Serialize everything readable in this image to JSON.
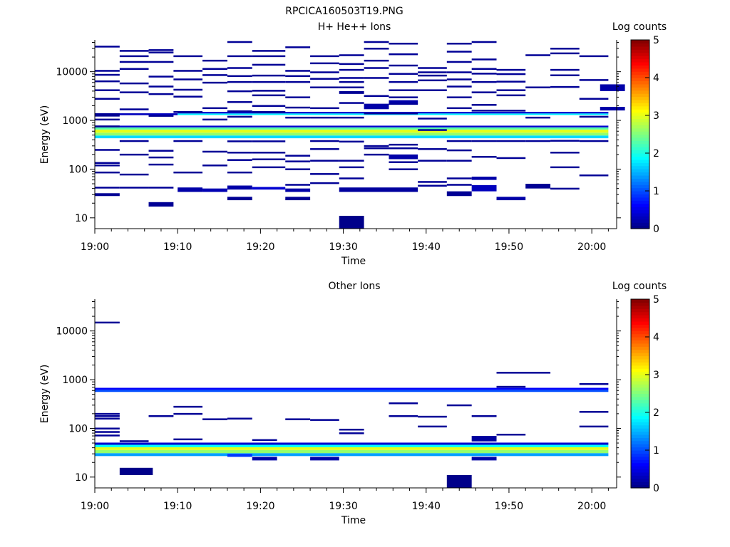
{
  "title": "RPCICA160503T19.PNG",
  "colorbar": {
    "label": "Log counts",
    "ticks": [
      "0",
      "1",
      "2",
      "3",
      "4",
      "5"
    ],
    "range": [
      0,
      5
    ],
    "scheme": "jet"
  },
  "chart_data": [
    {
      "type": "heatmap",
      "title": "H+ He++ Ions",
      "xlabel": "Time",
      "ylabel": "Energy (eV)",
      "x_ticks": [
        "19:00",
        "19:10",
        "19:20",
        "19:30",
        "19:40",
        "19:50",
        "20:00"
      ],
      "xlim_minutes": [
        0,
        63
      ],
      "y_ticks": [
        "10",
        "100",
        "1000",
        "10000"
      ],
      "ylim": [
        6,
        45000
      ],
      "y_scale": "log",
      "bands": [
        {
          "t0": 0,
          "t1": 62,
          "e0": 430,
          "e1": 490,
          "v": 1.7
        },
        {
          "t0": 0,
          "t1": 62,
          "e0": 490,
          "e1": 560,
          "v": 2.6
        },
        {
          "t0": 0,
          "t1": 62,
          "e0": 560,
          "e1": 650,
          "v": 3.0
        },
        {
          "t0": 0,
          "t1": 62,
          "e0": 650,
          "e1": 720,
          "v": 2.3
        },
        {
          "t0": 0,
          "t1": 62,
          "e0": 720,
          "e1": 780,
          "v": 0.4
        },
        {
          "t0": 0,
          "t1": 10,
          "e0": 1280,
          "e1": 1400,
          "v": 0.3
        },
        {
          "t0": 10,
          "t1": 62,
          "e0": 1290,
          "e1": 1390,
          "v": 1.8
        },
        {
          "t0": 10,
          "t1": 62,
          "e0": 1390,
          "e1": 1500,
          "v": 0.4
        },
        {
          "t0": 29.5,
          "t1": 32.5,
          "e0": 6,
          "e1": 11,
          "v": 0.05
        },
        {
          "t0": 0,
          "t1": 3,
          "e0": 1200,
          "e1": 1400,
          "v": 0.1
        },
        {
          "t0": 6.5,
          "t1": 9.5,
          "e0": 17,
          "e1": 21,
          "v": 0.1
        },
        {
          "t0": 0,
          "t1": 3,
          "e0": 28,
          "e1": 32,
          "v": 0.1
        },
        {
          "t0": 10,
          "t1": 13,
          "e0": 34,
          "e1": 42,
          "v": 0.2
        },
        {
          "t0": 13,
          "t1": 16,
          "e0": 34,
          "e1": 40,
          "v": 0.25
        },
        {
          "t0": 16,
          "t1": 19,
          "e0": 38,
          "e1": 46,
          "v": 0.2
        },
        {
          "t0": 19,
          "t1": 23,
          "e0": 38,
          "e1": 43,
          "v": 0.4
        },
        {
          "t0": 16,
          "t1": 19,
          "e0": 23,
          "e1": 27,
          "v": 0.1
        },
        {
          "t0": 23,
          "t1": 26,
          "e0": 23,
          "e1": 27,
          "v": 0.1
        },
        {
          "t0": 23,
          "t1": 26,
          "e0": 34,
          "e1": 40,
          "v": 0.2
        },
        {
          "t0": 29.5,
          "t1": 39,
          "e0": 34,
          "e1": 42,
          "v": 0.15
        },
        {
          "t0": 42.5,
          "t1": 45.5,
          "e0": 28,
          "e1": 35,
          "v": 0.1
        },
        {
          "t0": 45.5,
          "t1": 48.5,
          "e0": 35,
          "e1": 47,
          "v": 0.3
        },
        {
          "t0": 45.5,
          "t1": 48.5,
          "e0": 60,
          "e1": 70,
          "v": 0.2
        },
        {
          "t0": 48.5,
          "t1": 52,
          "e0": 23,
          "e1": 27,
          "v": 0.2
        },
        {
          "t0": 52,
          "t1": 55,
          "e0": 40,
          "e1": 50,
          "v": 0.1
        },
        {
          "t0": 61,
          "t1": 64,
          "e0": 4000,
          "e1": 5500,
          "v": 0.2
        },
        {
          "t0": 61,
          "t1": 64,
          "e0": 1600,
          "e1": 1900,
          "v": 0.2
        },
        {
          "t0": 32.5,
          "t1": 35.5,
          "e0": 1700,
          "e1": 2200,
          "v": 0.2
        },
        {
          "t0": 35.5,
          "t1": 39,
          "e0": 2200,
          "e1": 2600,
          "v": 0.2
        },
        {
          "t0": 35.5,
          "t1": 39,
          "e0": 160,
          "e1": 200,
          "v": 0.2
        },
        {
          "t0": 29.5,
          "t1": 32.5,
          "e0": 3500,
          "e1": 4000,
          "v": 0.1
        }
      ],
      "lines": [
        [
          0,
          3,
          [
            33000,
            10500,
            8700,
            6400,
            4200,
            2800,
            1050,
            760,
            250,
            135,
            120,
            86,
            42
          ]
        ],
        [
          3,
          6.5,
          [
            27000,
            21000,
            16000,
            11500,
            5800,
            3800,
            1700,
            380,
            200,
            78,
            42
          ]
        ],
        [
          6.5,
          9.5,
          [
            28000,
            25000,
            16000,
            8000,
            5000,
            3500,
            1250,
            240,
            175,
            125,
            42
          ]
        ],
        [
          9.5,
          13,
          [
            21000,
            10500,
            7000,
            4300,
            3100,
            1500,
            380,
            86
          ]
        ],
        [
          13,
          16,
          [
            17000,
            11500,
            8600,
            6000,
            1800,
            1050,
            230,
            120
          ]
        ],
        [
          16,
          19,
          [
            41000,
            21000,
            12000,
            8200,
            6200,
            4000,
            2400,
            1550,
            1200,
            375,
            220,
            155,
            86
          ]
        ],
        [
          19,
          23,
          [
            27000,
            21000,
            14000,
            8400,
            6200,
            4100,
            3300,
            2000,
            1500,
            375,
            220,
            160,
            110
          ]
        ],
        [
          23,
          26,
          [
            32000,
            10500,
            8200,
            6200,
            3000,
            1850,
            1150,
            190,
            145,
            100,
            48
          ]
        ],
        [
          26,
          29.5,
          [
            21000,
            15000,
            9800,
            7200,
            4800,
            1800,
            1150,
            380,
            260,
            150,
            80,
            52
          ]
        ],
        [
          29.5,
          32.5,
          [
            22000,
            14500,
            11000,
            7500,
            6200,
            4800,
            2300,
            1150,
            370,
            150,
            110,
            65
          ]
        ],
        [
          32.5,
          35.5,
          [
            41000,
            30000,
            17000,
            12000,
            7500,
            3200,
            1400,
            300,
            270,
            200
          ]
        ],
        [
          35.5,
          39,
          [
            38000,
            23000,
            13500,
            9100,
            6200,
            4200,
            3000,
            2200,
            1400,
            320,
            270,
            140,
            100
          ]
        ],
        [
          39,
          42.5,
          [
            12000,
            9800,
            8400,
            6700,
            4200,
            1100,
            640,
            260,
            150,
            55,
            46
          ]
        ],
        [
          42.5,
          45.5,
          [
            38000,
            26000,
            16000,
            9800,
            7000,
            5000,
            3000,
            1800,
            380,
            245,
            150,
            65,
            48
          ]
        ],
        [
          45.5,
          48.5,
          [
            41000,
            18000,
            11500,
            9200,
            6200,
            3800,
            2100,
            1600,
            380,
            180
          ]
        ],
        [
          48.5,
          52,
          [
            11000,
            9000,
            6300,
            4200,
            3300,
            1600,
            380,
            170
          ]
        ],
        [
          52,
          55,
          [
            22000,
            4800,
            1150,
            380
          ]
        ],
        [
          55,
          58.5,
          [
            30000,
            24000,
            11000,
            8500,
            4900,
            385,
            220,
            110,
            40
          ]
        ],
        [
          58.5,
          62,
          [
            21000,
            6800,
            2800,
            1200,
            380,
            75
          ]
        ]
      ]
    },
    {
      "type": "heatmap",
      "title": "Other Ions",
      "xlabel": "Time",
      "ylabel": "Energy (eV)",
      "x_ticks": [
        "19:00",
        "19:10",
        "19:20",
        "19:30",
        "19:40",
        "19:50",
        "20:00"
      ],
      "xlim_minutes": [
        0,
        63
      ],
      "y_ticks": [
        "10",
        "100",
        "1000",
        "10000"
      ],
      "ylim": [
        6,
        45000
      ],
      "y_scale": "log",
      "bands": [
        {
          "t0": 0,
          "t1": 62,
          "e0": 27,
          "e1": 31,
          "v": 1.4
        },
        {
          "t0": 0,
          "t1": 62,
          "e0": 31,
          "e1": 36,
          "v": 2.6
        },
        {
          "t0": 0,
          "t1": 62,
          "e0": 36,
          "e1": 41,
          "v": 3.0
        },
        {
          "t0": 0,
          "t1": 62,
          "e0": 41,
          "e1": 46,
          "v": 1.9
        },
        {
          "t0": 0,
          "t1": 62,
          "e0": 46,
          "e1": 51,
          "v": 0.4
        },
        {
          "t0": 0,
          "t1": 62,
          "e0": 560,
          "e1": 620,
          "v": 1.0
        },
        {
          "t0": 0,
          "t1": 62,
          "e0": 620,
          "e1": 680,
          "v": 0.6
        },
        {
          "t0": 3,
          "t1": 7,
          "e0": 11,
          "e1": 15.5,
          "v": 0.05
        },
        {
          "t0": 42.5,
          "t1": 45.5,
          "e0": 6,
          "e1": 11,
          "v": 0.05
        },
        {
          "t0": 45.5,
          "t1": 48.5,
          "e0": 54,
          "e1": 70,
          "v": 0.15
        },
        {
          "t0": 19,
          "t1": 22,
          "e0": 22,
          "e1": 26,
          "v": 0.2
        },
        {
          "t0": 26,
          "t1": 29.5,
          "e0": 22,
          "e1": 26,
          "v": 0.2
        },
        {
          "t0": 45.5,
          "t1": 48.5,
          "e0": 22,
          "e1": 26,
          "v": 0.2
        },
        {
          "t0": 16,
          "t1": 19,
          "e0": 26,
          "e1": 30,
          "v": 0.9
        }
      ],
      "lines": [
        [
          0,
          3,
          [
            15000,
            200,
            180,
            160,
            100,
            85,
            72
          ]
        ],
        [
          3,
          6.5,
          [
            55
          ]
        ],
        [
          6.5,
          9.5,
          [
            180
          ]
        ],
        [
          9.5,
          13,
          [
            280,
            200,
            60
          ]
        ],
        [
          13,
          16,
          [
            155
          ]
        ],
        [
          16,
          19,
          [
            160
          ]
        ],
        [
          19,
          22,
          [
            58
          ]
        ],
        [
          23,
          26,
          [
            155
          ]
        ],
        [
          26,
          29.5,
          [
            150
          ]
        ],
        [
          29.5,
          32.5,
          [
            95,
            80
          ]
        ],
        [
          35.5,
          39,
          [
            330,
            180
          ]
        ],
        [
          39,
          42.5,
          [
            175,
            110
          ]
        ],
        [
          42.5,
          45.5,
          [
            300
          ]
        ],
        [
          45.5,
          48.5,
          [
            180
          ]
        ],
        [
          48.5,
          55,
          [
            1400
          ]
        ],
        [
          48.5,
          52,
          [
            720,
            75
          ]
        ],
        [
          58.5,
          62,
          [
            820,
            220,
            110
          ]
        ]
      ]
    }
  ]
}
